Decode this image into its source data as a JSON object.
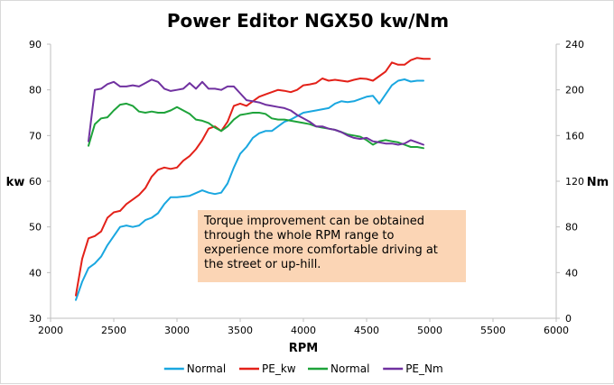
{
  "chart_data": {
    "type": "line",
    "title": "Power Editor NGX50 kw/Nm",
    "xlabel": "RPM",
    "ylabel_left": "kw",
    "ylabel_right": "Nm",
    "xlim": [
      2000,
      6000
    ],
    "x_ticks": [
      2000,
      2500,
      3000,
      3500,
      4000,
      4500,
      5000,
      5500,
      6000
    ],
    "ylim_left": [
      30,
      90
    ],
    "y_ticks_left": [
      30,
      40,
      50,
      60,
      70,
      80,
      90
    ],
    "ylim_right": [
      0,
      240
    ],
    "y_ticks_right": [
      0,
      40,
      80,
      120,
      160,
      200,
      240
    ],
    "grid": false,
    "legend": "bottom",
    "annotation": "Torque improvement can be obtained through the whole RPM range to experience more comfortable driving at the street or up-hill.",
    "series": [
      {
        "name": "Normal",
        "axis": "left",
        "color": "#1aa7e0",
        "points": [
          [
            2200,
            34
          ],
          [
            2250,
            38
          ],
          [
            2300,
            41
          ],
          [
            2350,
            42
          ],
          [
            2400,
            43.5
          ],
          [
            2450,
            46
          ],
          [
            2500,
            48
          ],
          [
            2550,
            50
          ],
          [
            2600,
            50.3
          ],
          [
            2650,
            50
          ],
          [
            2700,
            50.3
          ],
          [
            2750,
            51.5
          ],
          [
            2800,
            52
          ],
          [
            2850,
            53
          ],
          [
            2900,
            55
          ],
          [
            2950,
            56.5
          ],
          [
            3000,
            56.5
          ],
          [
            3100,
            56.8
          ],
          [
            3200,
            58
          ],
          [
            3250,
            57.5
          ],
          [
            3300,
            57.2
          ],
          [
            3350,
            57.5
          ],
          [
            3400,
            59.5
          ],
          [
            3450,
            63
          ],
          [
            3500,
            66
          ],
          [
            3550,
            67.5
          ],
          [
            3600,
            69.5
          ],
          [
            3650,
            70.5
          ],
          [
            3700,
            71
          ],
          [
            3750,
            71
          ],
          [
            3800,
            72
          ],
          [
            3850,
            73
          ],
          [
            3900,
            73.5
          ],
          [
            4000,
            75
          ],
          [
            4100,
            75.5
          ],
          [
            4200,
            76
          ],
          [
            4250,
            77
          ],
          [
            4300,
            77.5
          ],
          [
            4350,
            77.3
          ],
          [
            4400,
            77.5
          ],
          [
            4450,
            78
          ],
          [
            4500,
            78.5
          ],
          [
            4550,
            78.7
          ],
          [
            4600,
            77
          ],
          [
            4650,
            79
          ],
          [
            4700,
            81
          ],
          [
            4750,
            82
          ],
          [
            4800,
            82.3
          ],
          [
            4850,
            81.8
          ],
          [
            4900,
            82
          ],
          [
            4950,
            82
          ]
        ]
      },
      {
        "name": "PE_kw",
        "axis": "left",
        "color": "#e32119",
        "points": [
          [
            2200,
            35
          ],
          [
            2250,
            43
          ],
          [
            2300,
            47.5
          ],
          [
            2350,
            48
          ],
          [
            2400,
            49
          ],
          [
            2450,
            52
          ],
          [
            2500,
            53.2
          ],
          [
            2550,
            53.5
          ],
          [
            2600,
            55
          ],
          [
            2650,
            56
          ],
          [
            2700,
            57
          ],
          [
            2750,
            58.5
          ],
          [
            2800,
            61
          ],
          [
            2850,
            62.5
          ],
          [
            2900,
            63
          ],
          [
            2950,
            62.7
          ],
          [
            3000,
            63
          ],
          [
            3050,
            64.5
          ],
          [
            3100,
            65.5
          ],
          [
            3150,
            67
          ],
          [
            3200,
            69
          ],
          [
            3250,
            71.5
          ],
          [
            3300,
            72
          ],
          [
            3350,
            71
          ],
          [
            3400,
            73
          ],
          [
            3450,
            76.5
          ],
          [
            3500,
            77
          ],
          [
            3550,
            76.5
          ],
          [
            3600,
            77.5
          ],
          [
            3650,
            78.5
          ],
          [
            3700,
            79
          ],
          [
            3750,
            79.5
          ],
          [
            3800,
            80
          ],
          [
            3850,
            79.8
          ],
          [
            3900,
            79.5
          ],
          [
            3950,
            80
          ],
          [
            4000,
            81
          ],
          [
            4050,
            81.2
          ],
          [
            4100,
            81.5
          ],
          [
            4150,
            82.5
          ],
          [
            4200,
            82
          ],
          [
            4250,
            82.2
          ],
          [
            4300,
            82
          ],
          [
            4350,
            81.8
          ],
          [
            4400,
            82.2
          ],
          [
            4450,
            82.5
          ],
          [
            4500,
            82.4
          ],
          [
            4550,
            82
          ],
          [
            4600,
            83
          ],
          [
            4650,
            84
          ],
          [
            4700,
            86
          ],
          [
            4750,
            85.5
          ],
          [
            4800,
            85.5
          ],
          [
            4850,
            86.5
          ],
          [
            4900,
            87
          ],
          [
            4950,
            86.8
          ],
          [
            5000,
            86.8
          ]
        ]
      },
      {
        "name": "Normal",
        "axis": "right",
        "color": "#1ea33a",
        "points": [
          [
            2300,
            151
          ],
          [
            2350,
            170
          ],
          [
            2400,
            175
          ],
          [
            2450,
            176
          ],
          [
            2500,
            182
          ],
          [
            2550,
            187
          ],
          [
            2600,
            188
          ],
          [
            2650,
            186
          ],
          [
            2700,
            181
          ],
          [
            2750,
            180
          ],
          [
            2800,
            181
          ],
          [
            2850,
            180
          ],
          [
            2900,
            180
          ],
          [
            2950,
            182
          ],
          [
            3000,
            185
          ],
          [
            3050,
            182
          ],
          [
            3100,
            179
          ],
          [
            3150,
            174
          ],
          [
            3200,
            173
          ],
          [
            3250,
            171
          ],
          [
            3300,
            167
          ],
          [
            3350,
            164
          ],
          [
            3400,
            168
          ],
          [
            3450,
            174
          ],
          [
            3500,
            178
          ],
          [
            3550,
            179
          ],
          [
            3600,
            180
          ],
          [
            3650,
            180
          ],
          [
            3700,
            179
          ],
          [
            3750,
            175
          ],
          [
            3800,
            174
          ],
          [
            3850,
            174
          ],
          [
            3900,
            173
          ],
          [
            3950,
            172
          ],
          [
            4000,
            171
          ],
          [
            4050,
            170
          ],
          [
            4100,
            168
          ],
          [
            4150,
            167
          ],
          [
            4200,
            166
          ],
          [
            4250,
            165
          ],
          [
            4300,
            163
          ],
          [
            4350,
            161
          ],
          [
            4400,
            160
          ],
          [
            4450,
            159
          ],
          [
            4500,
            156
          ],
          [
            4550,
            152
          ],
          [
            4600,
            155
          ],
          [
            4650,
            156
          ],
          [
            4700,
            155
          ],
          [
            4750,
            154
          ],
          [
            4800,
            152
          ],
          [
            4850,
            150
          ],
          [
            4900,
            150
          ],
          [
            4950,
            149
          ]
        ]
      },
      {
        "name": "PE_Nm",
        "axis": "right",
        "color": "#7031a0",
        "points": [
          [
            2300,
            155
          ],
          [
            2350,
            200
          ],
          [
            2400,
            201
          ],
          [
            2450,
            205
          ],
          [
            2500,
            207
          ],
          [
            2550,
            203
          ],
          [
            2600,
            203
          ],
          [
            2650,
            204
          ],
          [
            2700,
            203
          ],
          [
            2750,
            206
          ],
          [
            2800,
            209
          ],
          [
            2850,
            207
          ],
          [
            2900,
            201
          ],
          [
            2950,
            199
          ],
          [
            3000,
            200
          ],
          [
            3050,
            201
          ],
          [
            3100,
            206
          ],
          [
            3150,
            201
          ],
          [
            3200,
            207
          ],
          [
            3250,
            201
          ],
          [
            3300,
            201
          ],
          [
            3350,
            200
          ],
          [
            3400,
            203
          ],
          [
            3450,
            203
          ],
          [
            3500,
            197
          ],
          [
            3550,
            191
          ],
          [
            3600,
            190
          ],
          [
            3650,
            189
          ],
          [
            3700,
            187
          ],
          [
            3750,
            186
          ],
          [
            3800,
            185
          ],
          [
            3850,
            184
          ],
          [
            3900,
            182
          ],
          [
            3950,
            178
          ],
          [
            4000,
            175
          ],
          [
            4050,
            172
          ],
          [
            4100,
            168
          ],
          [
            4150,
            168
          ],
          [
            4200,
            166
          ],
          [
            4250,
            165
          ],
          [
            4300,
            163
          ],
          [
            4350,
            160
          ],
          [
            4400,
            158
          ],
          [
            4450,
            157
          ],
          [
            4500,
            158
          ],
          [
            4550,
            155
          ],
          [
            4600,
            154
          ],
          [
            4650,
            153
          ],
          [
            4700,
            153
          ],
          [
            4750,
            152
          ],
          [
            4800,
            153
          ],
          [
            4850,
            156
          ],
          [
            4900,
            154
          ],
          [
            4950,
            152
          ]
        ]
      }
    ]
  }
}
